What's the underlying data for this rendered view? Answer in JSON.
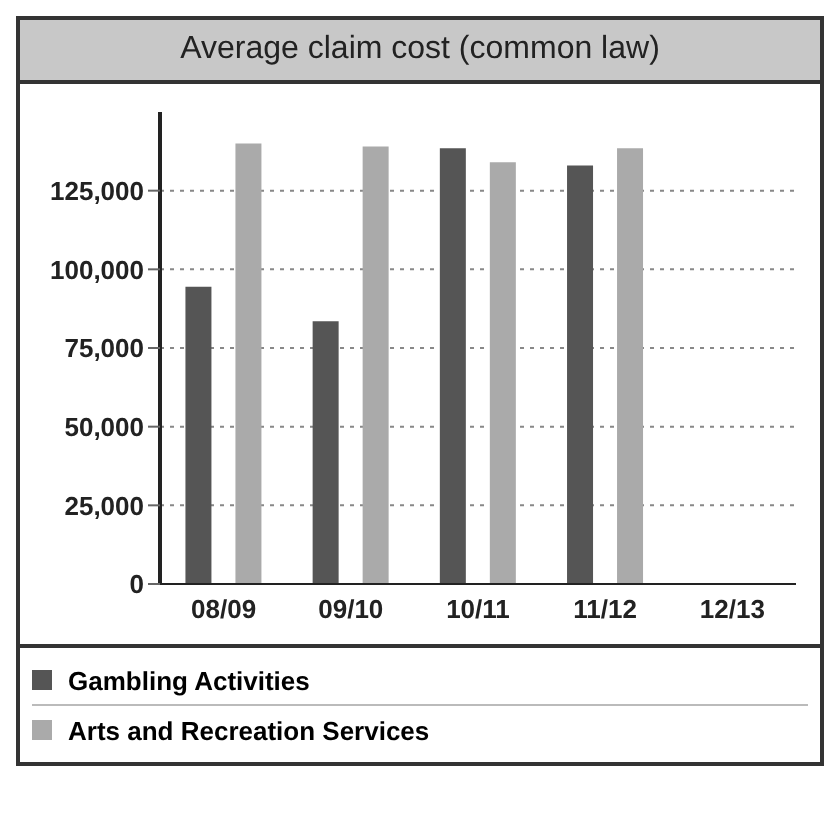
{
  "chart_data": {
    "type": "bar",
    "title": "Average claim cost (common law)",
    "categories": [
      "08/09",
      "09/10",
      "10/11",
      "11/12",
      "12/13"
    ],
    "series": [
      {
        "name": "Gambling Activities",
        "color": "#555555",
        "values": [
          94500,
          83500,
          138500,
          133000,
          null
        ]
      },
      {
        "name": "Arts and Recreation Services",
        "color": "#aaaaaa",
        "values": [
          140000,
          139000,
          134000,
          138500,
          null
        ]
      }
    ],
    "ylim": [
      0,
      150000
    ],
    "yticks": [
      0,
      {
        "value": 25000,
        "label": "25,000"
      },
      {
        "value": 50000,
        "label": "50,000"
      },
      {
        "value": 75000,
        "label": "75,000"
      },
      {
        "value": 100000,
        "label": "100,000"
      },
      {
        "value": 125000,
        "label": "125,000"
      }
    ],
    "grid": "y",
    "legend": "bottom"
  }
}
